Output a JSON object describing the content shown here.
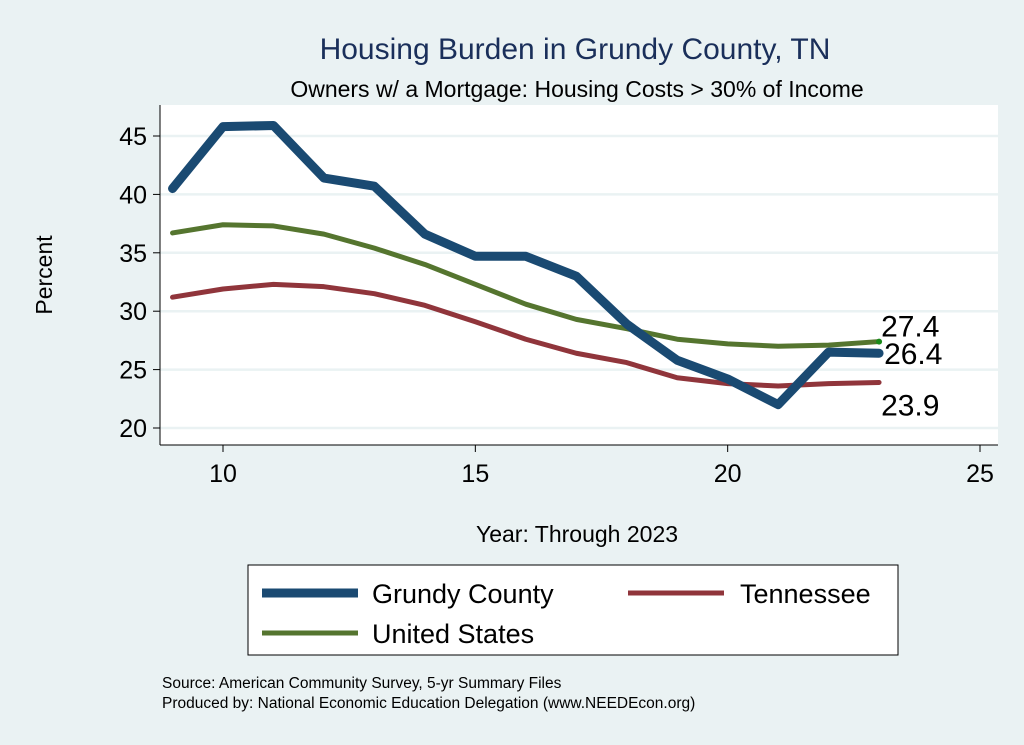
{
  "chart_data": {
    "type": "line",
    "title": "Housing Burden in Grundy County, TN",
    "subtitle": "Owners w/ a Mortgage: Housing Costs > 30% of Income",
    "xlabel": "Year: Through 2023",
    "ylabel": "Percent",
    "xlim": [
      8.75,
      25.35
    ],
    "ylim": [
      18.5,
      47.5
    ],
    "xticks": [
      10,
      15,
      20,
      25
    ],
    "yticks": [
      20,
      25,
      30,
      35,
      40,
      45
    ],
    "grid": true,
    "legend_position": "bottom",
    "x": [
      9,
      10,
      11,
      12,
      13,
      14,
      15,
      16,
      17,
      18,
      19,
      20,
      21,
      22,
      23
    ],
    "series": [
      {
        "name": "Grundy County",
        "color": "#1a4a72",
        "width": 9,
        "values": [
          40.5,
          45.8,
          45.9,
          41.4,
          40.7,
          36.6,
          34.7,
          34.7,
          33.0,
          28.9,
          25.8,
          24.2,
          22.0,
          26.5,
          26.4
        ],
        "end_label": "26.4"
      },
      {
        "name": "Tennessee",
        "color": "#90353b",
        "width": 5,
        "values": [
          31.2,
          31.9,
          32.3,
          32.1,
          31.5,
          30.5,
          29.1,
          27.6,
          26.4,
          25.6,
          24.3,
          23.8,
          23.6,
          23.8,
          23.9
        ],
        "end_label": "23.9"
      },
      {
        "name": "United States",
        "color": "#55752f",
        "width": 5,
        "values": [
          36.7,
          37.4,
          37.3,
          36.6,
          35.4,
          34.0,
          32.3,
          30.6,
          29.3,
          28.5,
          27.6,
          27.2,
          27.0,
          27.1,
          27.4
        ],
        "end_label": "27.4"
      }
    ],
    "notes": [
      "Source: American Community Survey, 5-yr Summary Files",
      "Produced by: National Economic Education Delegation (www.NEEDEcon.org)"
    ]
  }
}
